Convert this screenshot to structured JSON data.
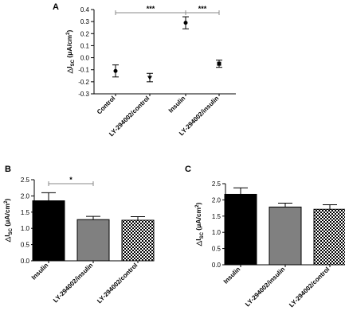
{
  "chart_data": [
    {
      "panel": "A",
      "type": "scatter",
      "ylabel": "△I",
      "ylabel_sub": "SC",
      "ylabel_unit": " (μA/cm",
      "ylabel_sup": "2",
      "ylabel_end": ")",
      "ylim": [
        -0.3,
        0.4
      ],
      "yticks": [
        "-0.3",
        "-0.2",
        "-0.1",
        "0.0",
        "0.1",
        "0.2",
        "0.3",
        "0.4"
      ],
      "categories": [
        "Control",
        "LY-294002/control",
        "Insulin",
        "LY-294002/insulin"
      ],
      "values": [
        -0.11,
        -0.165,
        0.29,
        -0.05
      ],
      "errors": [
        0.05,
        0.035,
        0.05,
        0.03
      ],
      "grid": false,
      "annotations": [
        {
          "from": 0,
          "to": 2,
          "text": "***"
        },
        {
          "from": 2,
          "to": 3,
          "text": "***"
        }
      ]
    },
    {
      "panel": "B",
      "type": "bar",
      "ylabel": "△I",
      "ylabel_sub": "SC",
      "ylabel_unit": " (μA/cm",
      "ylabel_sup": "2",
      "ylabel_end": ")",
      "ylim": [
        0,
        2.5
      ],
      "yticks": [
        "0.0",
        "0.5",
        "1.0",
        "1.5",
        "2.0",
        "2.5"
      ],
      "categories": [
        "Insulin",
        "LY-294002/insulin",
        "LY-294002/control"
      ],
      "values": [
        1.85,
        1.27,
        1.25
      ],
      "errors": [
        0.25,
        0.1,
        0.11
      ],
      "fills": [
        "black",
        "gray",
        "checker"
      ],
      "grid": false,
      "annotations": [
        {
          "from": 0,
          "to": 1,
          "text": "*"
        }
      ]
    },
    {
      "panel": "C",
      "type": "bar",
      "ylabel": "△I",
      "ylabel_sub": "SC",
      "ylabel_unit": " (μA/cm",
      "ylabel_sup": "2",
      "ylabel_end": ")",
      "ylim": [
        0,
        2.5
      ],
      "yticks": [
        "0.0",
        "0.5",
        "1.0",
        "1.5",
        "2.0",
        "2.5"
      ],
      "categories": [
        "Insulin",
        "LY-294002/insulin",
        "LY-294002/control"
      ],
      "values": [
        2.17,
        1.78,
        1.71
      ],
      "errors": [
        0.2,
        0.12,
        0.14
      ],
      "fills": [
        "black",
        "gray",
        "checker"
      ],
      "grid": false,
      "annotations": []
    }
  ]
}
